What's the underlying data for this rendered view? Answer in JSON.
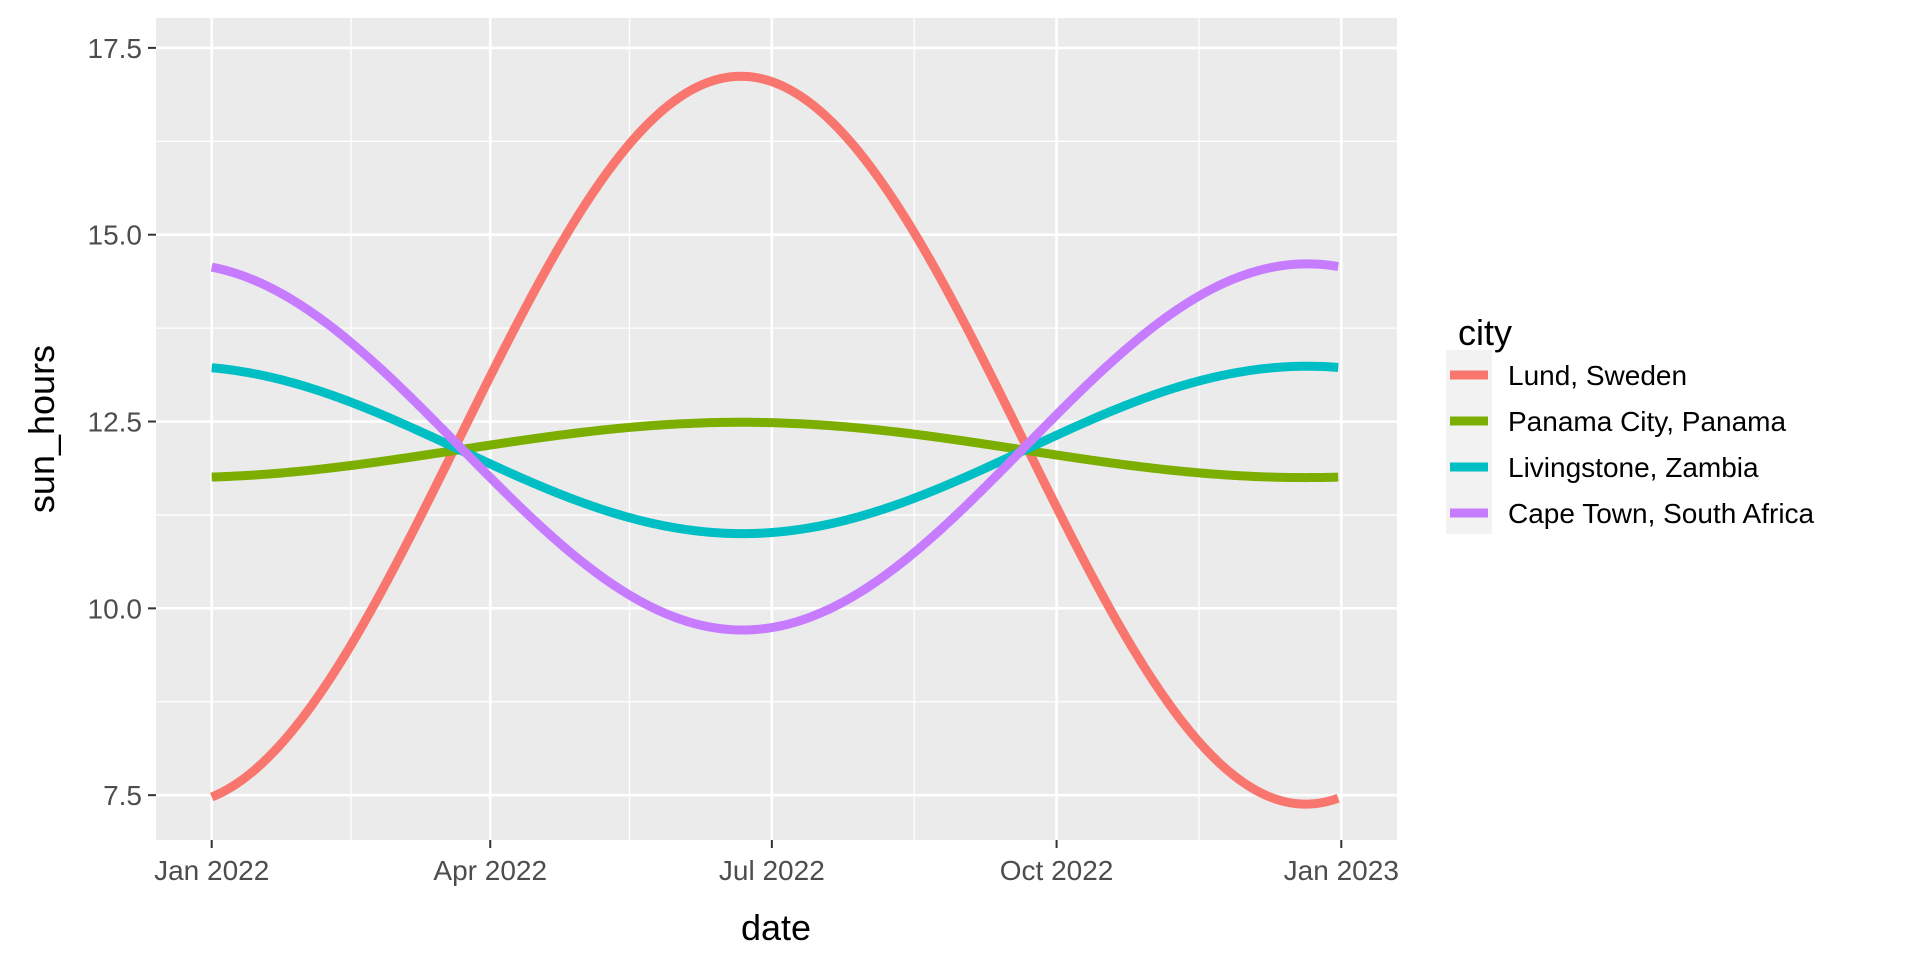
{
  "chart_data": {
    "type": "line",
    "xlabel": "date",
    "ylabel": "sun_hours",
    "x_range": [
      "2021-12-14",
      "2023-01-19"
    ],
    "ylim": [
      6.9,
      17.9
    ],
    "x_ticks": [
      {
        "date": "2022-01-01",
        "label": "Jan 2022"
      },
      {
        "date": "2022-04-01",
        "label": "Apr 2022"
      },
      {
        "date": "2022-07-01",
        "label": "Jul 2022"
      },
      {
        "date": "2022-10-01",
        "label": "Oct 2022"
      },
      {
        "date": "2023-01-01",
        "label": "Jan 2023"
      }
    ],
    "x_minor_ticks": [
      "2022-02-15",
      "2022-05-16",
      "2022-08-16",
      "2022-11-16"
    ],
    "y_ticks": [
      {
        "value": 7.5,
        "label": "7.5"
      },
      {
        "value": 10.0,
        "label": "10.0"
      },
      {
        "value": 12.5,
        "label": "12.5"
      },
      {
        "value": 15.0,
        "label": "15.0"
      },
      {
        "value": 17.5,
        "label": "17.5"
      }
    ],
    "y_minor_ticks": [
      8.75,
      11.25,
      13.75,
      16.25
    ],
    "grid": true,
    "legend": {
      "title": "city",
      "position": "right"
    },
    "series": [
      {
        "name": "Lund, Sweden",
        "color": "#F8766D",
        "mean": 12.25,
        "amplitude": 4.87,
        "peak_date": "2022-06-21",
        "phase": "summer-peak"
      },
      {
        "name": "Panama City, Panama",
        "color": "#7CAE00",
        "mean": 12.12,
        "amplitude": 0.37,
        "peak_date": "2022-06-21",
        "phase": "summer-peak"
      },
      {
        "name": "Livingstone, Zambia",
        "color": "#00BFC4",
        "mean": 12.12,
        "amplitude": 1.12,
        "peak_date": "2022-12-21",
        "phase": "winter-peak"
      },
      {
        "name": "Cape Town, South Africa",
        "color": "#C77CFF",
        "mean": 12.16,
        "amplitude": 2.45,
        "peak_date": "2022-12-21",
        "phase": "winter-peak"
      }
    ]
  }
}
